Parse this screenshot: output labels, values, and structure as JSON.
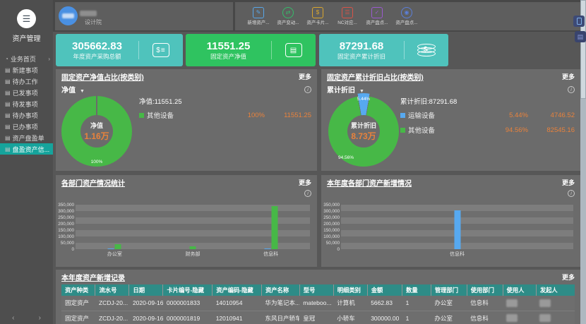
{
  "app": {
    "title": "资产管理"
  },
  "sidebar": {
    "items": [
      "业务首页",
      "新建事项",
      "待办工作",
      "已发事项",
      "待发事项",
      "待办事项",
      "已办事项",
      "资产盘盈单",
      "盘盈资产信..."
    ],
    "active_index": 8,
    "prev": "‹",
    "next": "›"
  },
  "header": {
    "org": "设计院",
    "toolbar": [
      {
        "label": "新增资产...",
        "icon": "asset-add-icon",
        "color": "#58a6e8",
        "glyph": "✎",
        "round": false
      },
      {
        "label": "资产变动...",
        "icon": "asset-change-icon",
        "color": "#35bd6a",
        "glyph": "⇄",
        "round": true
      },
      {
        "label": "资产卡片...",
        "icon": "asset-card-icon",
        "color": "#d9a62e",
        "glyph": "$",
        "round": false
      },
      {
        "label": "NC对应...",
        "icon": "nc-doc-icon",
        "color": "#d95348",
        "glyph": "☰",
        "round": false
      },
      {
        "label": "资产盘点...",
        "icon": "inventory-check-icon",
        "color": "#9b59d0",
        "glyph": "✓",
        "round": false
      },
      {
        "label": "资产盘点...",
        "icon": "inventory-shield-icon",
        "color": "#5b7fd9",
        "glyph": "◉",
        "round": true
      }
    ]
  },
  "cards": [
    {
      "value": "305662.83",
      "label": "年度资产采购总额",
      "color": "#4fc3bc",
      "icon": "invoice-icon"
    },
    {
      "value": "11551.25",
      "label": "固定资产净值",
      "color": "#2fc360",
      "icon": "card-icon"
    },
    {
      "value": "87291.68",
      "label": "固定资产累计折旧",
      "color": "#4fc3bc",
      "icon": "coins-icon"
    }
  ],
  "panels": {
    "net_value": {
      "title": "固定资产净值占比(按类别)",
      "more": "更多",
      "dropdown": "净值",
      "legend_title": "净值:11551.25",
      "center_label": "净值",
      "center_value": "1.16万",
      "slice_label": "100%",
      "legend": [
        {
          "name": "其他设备",
          "color": "#47b847",
          "percent": "100%",
          "value": "11551.25"
        }
      ]
    },
    "depreciation": {
      "title": "固定资产累计折旧占比(按类别)",
      "more": "更多",
      "dropdown": "累计折旧",
      "legend_title": "累计折旧:87291.68",
      "center_label": "累计折旧",
      "center_value": "8.73万",
      "slice_label_blue": "5.44%",
      "slice_label_green": "94.56%",
      "legend": [
        {
          "name": "运输设备",
          "color": "#57a9f0",
          "percent": "5.44%",
          "value": "4746.52"
        },
        {
          "name": "其他设备",
          "color": "#47b847",
          "percent": "94.56%",
          "value": "82545.16"
        }
      ]
    },
    "dept_stats": {
      "title": "各部门资产情况统计",
      "more": "更多"
    },
    "dept_new": {
      "title": "本年度各部门资产新增情况",
      "more": "更多"
    }
  },
  "chart_data": [
    {
      "type": "pie",
      "title": "固定资产净值占比(按类别)",
      "labels": [
        "其他设备"
      ],
      "values": [
        11551.25
      ],
      "percents": [
        100
      ],
      "total": 11551.25,
      "colors": [
        "#47b847"
      ],
      "center_text": "净值 1.16万"
    },
    {
      "type": "pie",
      "title": "固定资产累计折旧占比(按类别)",
      "labels": [
        "运输设备",
        "其他设备"
      ],
      "values": [
        4746.52,
        82545.16
      ],
      "percents": [
        5.44,
        94.56
      ],
      "total": 87291.68,
      "colors": [
        "#57a9f0",
        "#47b847"
      ],
      "center_text": "累计折旧 8.73万"
    },
    {
      "type": "bar",
      "title": "各部门资产情况统计",
      "categories": [
        "办公室",
        "财务部",
        "信息科"
      ],
      "series": [
        {
          "name": "blue-series",
          "color": "#57a9f0",
          "values": [
            2500,
            0,
            8000
          ]
        },
        {
          "name": "green-series",
          "color": "#47b847",
          "values": [
            40000,
            22000,
            340000
          ]
        }
      ],
      "ylim": [
        0,
        350000
      ],
      "ytick_step": 50000,
      "grid": "striped",
      "legend_position": "none"
    },
    {
      "type": "bar",
      "title": "本年度各部门资产新增情况",
      "categories": [
        "信息科"
      ],
      "series": [
        {
          "name": "blue-series",
          "color": "#57a9f0",
          "values": [
            305662.83
          ]
        }
      ],
      "ylim": [
        0,
        350000
      ],
      "ytick_step": 50000,
      "grid": "striped",
      "legend_position": "none"
    }
  ],
  "table": {
    "title": "本年度资产新增记录",
    "more": "更多",
    "columns": [
      "资产种类",
      "流水号",
      "日期",
      "卡片编号-隐藏",
      "资产编码-隐藏",
      "资产名称",
      "型号",
      "明细类别",
      "金额",
      "数量",
      "管理部门",
      "使用部门",
      "使用人",
      "发起人"
    ],
    "redacted_columns": [
      12,
      13
    ],
    "rows": [
      [
        "固定资产",
        "ZCDJ-20...",
        "2020-09-16",
        "0000001833",
        "14010954",
        "华为笔记本...",
        "mateboo...",
        "计算机",
        "5662.83",
        "1",
        "办公室",
        "信息科",
        "",
        ""
      ],
      [
        "固定资产",
        "ZCDJ-20...",
        "2020-09-16",
        "0000001819",
        "12010941",
        "东风日产轿车",
        "皇冠",
        "小轿车",
        "300000.00",
        "1",
        "办公室",
        "信息科",
        "",
        ""
      ]
    ]
  }
}
